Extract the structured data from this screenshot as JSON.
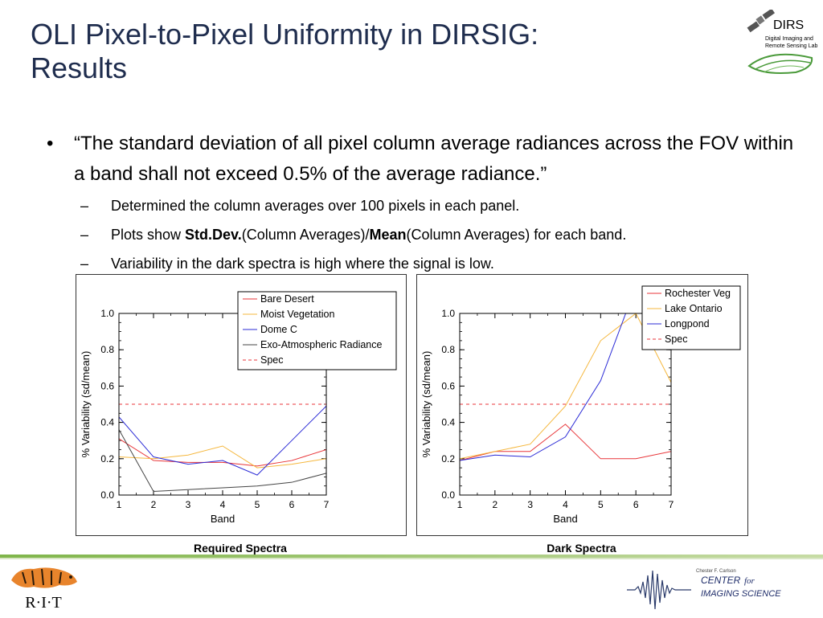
{
  "slide": {
    "title_line1": "OLI Pixel-to-Pixel Uniformity in DIRSIG:",
    "title_line2": "Results",
    "bullet_main": "“The standard deviation of all pixel column average radiances across the FOV within a band shall not exceed 0.5% of the average radiance.”",
    "sub1": "Determined the column averages over 100 pixels in each panel.",
    "sub2_pre": "Plots show ",
    "sub2_b1": "Std.Dev.",
    "sub2_mid": "(Column Averages)/",
    "sub2_b2": "Mean",
    "sub2_post": "(Column Averages) for each band.",
    "sub3": "Variability in the dark spectra is high where the signal is low.",
    "bullet_char": "•",
    "dash_char": "–"
  },
  "logos": {
    "dirs_name": "DIRS",
    "dirs_line1": "Digital Imaging and",
    "dirs_line2": "Remote Sensing Lab",
    "rit": "R·I·T",
    "cis_small": "Chester F. Carlson",
    "cis_center": "CENTER",
    "cis_for": "for",
    "cis_imaging": "IMAGING SCIENCE"
  },
  "captions": {
    "left": "Required Spectra",
    "right": "Dark Spectra"
  },
  "chart_data": [
    {
      "type": "line",
      "xlabel": "Band",
      "ylabel": "% Variability (sd/mean)",
      "x": [
        1,
        2,
        3,
        4,
        5,
        6,
        7
      ],
      "xlim": [
        1,
        7
      ],
      "ylim": [
        0.0,
        1.0
      ],
      "yticks": [
        "0.0",
        "0.2",
        "0.4",
        "0.6",
        "0.8",
        "1.0"
      ],
      "xticks": [
        "1",
        "2",
        "3",
        "4",
        "5",
        "6",
        "7"
      ],
      "legend_position": "top-right",
      "series": [
        {
          "name": "Bare Desert",
          "color": "#e8363a",
          "dash": false,
          "values": [
            0.31,
            0.19,
            0.18,
            0.18,
            0.16,
            0.19,
            0.25
          ]
        },
        {
          "name": "Moist Vegetation",
          "color": "#f5b73d",
          "dash": false,
          "values": [
            0.21,
            0.2,
            0.22,
            0.27,
            0.15,
            0.17,
            0.2
          ]
        },
        {
          "name": "Dome C",
          "color": "#2b2bd6",
          "dash": false,
          "values": [
            0.43,
            0.21,
            0.17,
            0.19,
            0.11,
            0.3,
            0.49
          ]
        },
        {
          "name": "Exo-Atmospheric Radiance",
          "color": "#444444",
          "dash": false,
          "values": [
            0.36,
            0.02,
            0.03,
            0.04,
            0.05,
            0.07,
            0.12
          ]
        },
        {
          "name": "Spec",
          "color": "#e8363a",
          "dash": true,
          "values": [
            0.5,
            0.5,
            0.5,
            0.5,
            0.5,
            0.5,
            0.5
          ]
        }
      ]
    },
    {
      "type": "line",
      "xlabel": "Band",
      "ylabel": "% Variability (sd/mean)",
      "x": [
        1,
        2,
        3,
        4,
        5,
        6,
        7
      ],
      "xlim": [
        1,
        7
      ],
      "ylim": [
        0.0,
        1.0
      ],
      "yticks": [
        "0.0",
        "0.2",
        "0.4",
        "0.6",
        "0.8",
        "1.0"
      ],
      "xticks": [
        "1",
        "2",
        "3",
        "4",
        "5",
        "6",
        "7"
      ],
      "legend_position": "top-right",
      "series": [
        {
          "name": "Rochester Veg",
          "color": "#e8363a",
          "dash": false,
          "values": [
            0.19,
            0.24,
            0.24,
            0.39,
            0.2,
            0.2,
            0.24
          ]
        },
        {
          "name": "Lake Ontario",
          "color": "#f5b73d",
          "dash": false,
          "values": [
            0.2,
            0.24,
            0.28,
            0.49,
            0.85,
            1.0,
            0.62
          ]
        },
        {
          "name": "Longpond",
          "color": "#2b2bd6",
          "dash": false,
          "values": [
            0.19,
            0.22,
            0.21,
            0.32,
            0.63,
            1.15,
            null
          ]
        },
        {
          "name": "Spec",
          "color": "#e8363a",
          "dash": true,
          "values": [
            0.5,
            0.5,
            0.5,
            0.5,
            0.5,
            0.5,
            0.5
          ]
        }
      ]
    }
  ]
}
